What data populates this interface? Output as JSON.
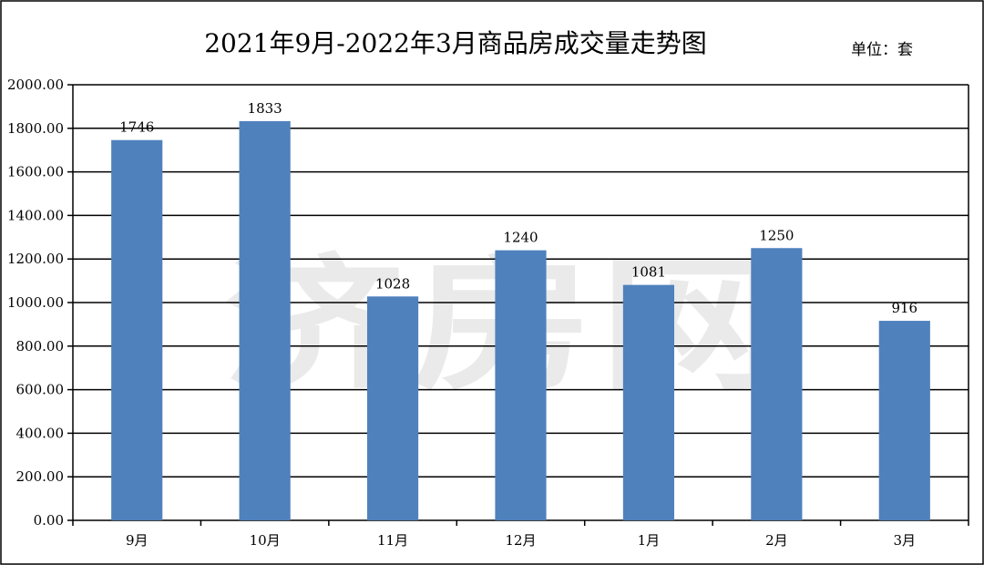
{
  "colors": {
    "bar": "#4f81bd",
    "grid": "#000000",
    "frame": "#000000",
    "background": "#ffffff"
  },
  "watermark": "济房网",
  "chart_data": {
    "type": "bar",
    "title": "2021年9月-2022年3月商品房成交量走势图",
    "unit_label": "单位：套",
    "xlabel": "",
    "ylabel": "",
    "categories": [
      "9月",
      "10月",
      "11月",
      "12月",
      "1月",
      "2月",
      "3月"
    ],
    "values": [
      1746,
      1833,
      1028,
      1240,
      1081,
      1250,
      916
    ],
    "data_labels": [
      "1746",
      "1833",
      "1028",
      "1240",
      "1081",
      "1250",
      "916"
    ],
    "ylim": [
      0,
      2000
    ],
    "yticks": [
      0,
      200,
      400,
      600,
      800,
      1000,
      1200,
      1400,
      1600,
      1800,
      2000
    ],
    "ytick_labels": [
      "0.00",
      "200.00",
      "400.00",
      "600.00",
      "800.00",
      "1000.00",
      "1200.00",
      "1400.00",
      "1600.00",
      "1800.00",
      "2000.00"
    ],
    "grid": true,
    "legend": "none"
  }
}
